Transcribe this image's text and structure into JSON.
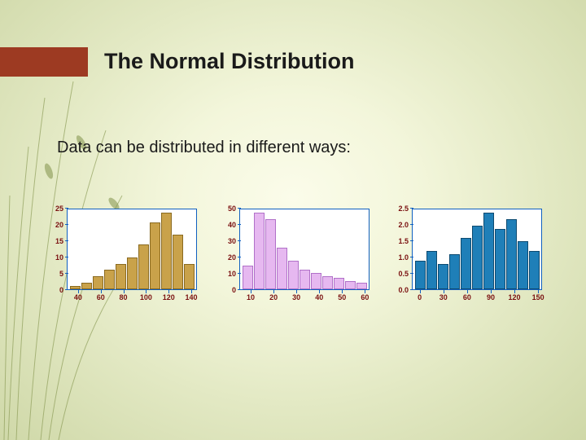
{
  "accent_color": "#9d3a22",
  "title": "The Normal Distribution",
  "subtitle": "Data can be distributed in different ways:",
  "charts": [
    {
      "type": "histogram",
      "bar_color": "#c9a24a",
      "bar_border": "#8a6a20",
      "axis_color": "#1060c0",
      "tick_color": "#7a1010",
      "ylim": [
        0,
        25
      ],
      "yticks": [
        0,
        5,
        10,
        15,
        20,
        25
      ],
      "xlim": [
        30,
        145
      ],
      "xticks": [
        40,
        60,
        80,
        100,
        120,
        140
      ],
      "values": [
        1,
        2,
        4,
        6,
        8,
        10,
        14,
        21,
        24,
        17,
        8
      ]
    },
    {
      "type": "histogram",
      "bar_color": "#e6b8f0",
      "bar_border": "#b070c8",
      "axis_color": "#1060c0",
      "tick_color": "#7a1010",
      "ylim": [
        0,
        50
      ],
      "yticks": [
        0,
        10,
        20,
        30,
        40,
        50
      ],
      "xlim": [
        5,
        62
      ],
      "xticks": [
        10,
        20,
        30,
        40,
        50,
        60
      ],
      "values": [
        15,
        48,
        44,
        26,
        18,
        12,
        10,
        8,
        7,
        5,
        4
      ]
    },
    {
      "type": "histogram",
      "bar_color": "#1f7fb8",
      "bar_border": "#0d4a70",
      "axis_color": "#1060c0",
      "tick_color": "#7a1010",
      "ylim": [
        0,
        2.5
      ],
      "yticks": [
        0,
        0.5,
        1.0,
        1.5,
        2.0,
        2.5
      ],
      "xlim": [
        -10,
        155
      ],
      "xticks": [
        0,
        30,
        60,
        90,
        120,
        150
      ],
      "values": [
        0.9,
        1.2,
        0.8,
        1.1,
        1.6,
        2.0,
        2.4,
        1.9,
        2.2,
        1.5,
        1.2
      ]
    }
  ]
}
